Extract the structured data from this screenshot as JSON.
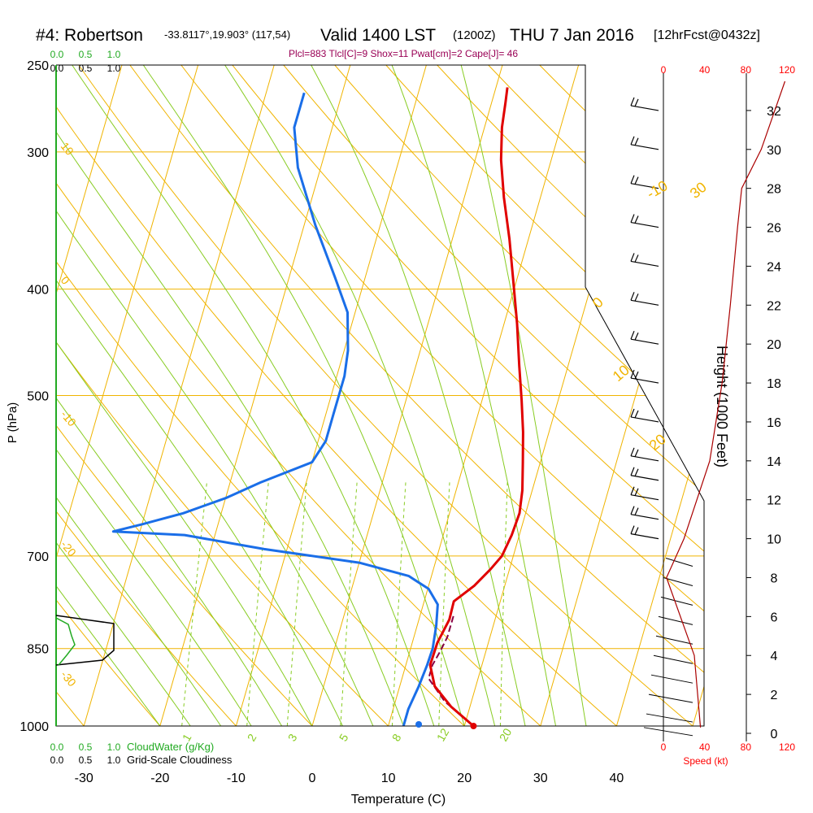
{
  "title": {
    "station": "#4: Robertson",
    "coords": "-33.8117°,19.903° (117,54)",
    "valid": "Valid 1400 LST",
    "zulu": "(1200Z)",
    "date": "THU 7 Jan 2016",
    "forecast": "[12hrFcst@0432z]"
  },
  "indices_text": "Plcl=883 Tlcl[C]=9 Shox=11 Pwat[cm]=2 Cape[J]= 46",
  "colors": {
    "isobar": "#f0b400",
    "mixing_ratio": "#88cc22",
    "temperature": "#e00000",
    "dewpoint": "#1a6ee8",
    "parcel": "#880044",
    "cloud_water": "#22aa22",
    "speed": "#ff0000",
    "indices": "#990055"
  },
  "chart_data": [
    {
      "type": "line",
      "name": "skew-t",
      "xlabel": "Temperature (C)",
      "ylabel": "P (hPa)",
      "x_ticks": [
        "-30",
        "-20",
        "-10",
        "0",
        "10",
        "20",
        "30",
        "40"
      ],
      "y_ticks": [
        "250",
        "300",
        "400",
        "500",
        "700",
        "850",
        "1000"
      ],
      "xlim": [
        -33.5,
        51.5
      ],
      "ylim": [
        1000,
        250
      ],
      "grid": true,
      "isotherm_labels": [
        {
          "t": -10,
          "text": "-10"
        },
        {
          "t": 0,
          "text": "0"
        },
        {
          "t": 10,
          "text": "10"
        },
        {
          "t": 20,
          "text": "20"
        },
        {
          "t": 30,
          "text": "30"
        }
      ],
      "dry_adiabat_labels": [
        "10",
        "0",
        "-10",
        "-20",
        "-30"
      ],
      "mixing_ratio_labels": [
        "1",
        "2",
        "3",
        "5",
        "8",
        "12",
        "20"
      ],
      "series": [
        {
          "key": "temperature",
          "points": [
            [
              21.2,
              1000
            ],
            [
              17.5,
              960
            ],
            [
              14.6,
              920
            ],
            [
              13.2,
              880
            ],
            [
              13.3,
              840
            ],
            [
              14.0,
              800
            ],
            [
              13.9,
              770
            ],
            [
              16.0,
              745
            ],
            [
              17.5,
              720
            ],
            [
              18.5,
              700
            ],
            [
              19.0,
              670
            ],
            [
              19.2,
              640
            ],
            [
              18.7,
              610
            ],
            [
              17.7,
              575
            ],
            [
              16.6,
              540
            ],
            [
              15.2,
              505
            ],
            [
              13.6,
              470
            ],
            [
              11.7,
              430
            ],
            [
              9.7,
              395
            ],
            [
              7.5,
              360
            ],
            [
              5.2,
              330
            ],
            [
              3.4,
              305
            ],
            [
              2.3,
              285
            ],
            [
              1.8,
              270
            ],
            [
              1.5,
              262
            ]
          ]
        },
        {
          "key": "dewpoint",
          "points": [
            [
              12.0,
              1000
            ],
            [
              12.0,
              965
            ],
            [
              12.5,
              920
            ],
            [
              12.8,
              880
            ],
            [
              12.9,
              850
            ],
            [
              12.5,
              810
            ],
            [
              11.9,
              775
            ],
            [
              10.1,
              750
            ],
            [
              7.0,
              730
            ],
            [
              0,
              710
            ],
            [
              -13,
              690
            ],
            [
              -24,
              670
            ],
            [
              -33.5,
              665
            ],
            [
              -30,
              655
            ],
            [
              -25,
              640
            ],
            [
              -20,
              620
            ],
            [
              -16,
              600
            ],
            [
              -10,
              575
            ],
            [
              -9,
              550
            ],
            [
              -9,
              520
            ],
            [
              -9,
              500
            ],
            [
              -9,
              480
            ],
            [
              -9.5,
              455
            ],
            [
              -11,
              420
            ],
            [
              -14,
              390
            ],
            [
              -18.5,
              350
            ],
            [
              -23,
              310
            ],
            [
              -25,
              285
            ],
            [
              -25,
              265
            ]
          ]
        },
        {
          "key": "parcel",
          "points": [
            [
              21.2,
              1000
            ],
            [
              16.5,
              950
            ],
            [
              13.5,
              905
            ],
            [
              13.5,
              880
            ],
            [
              14.0,
              855
            ],
            [
              14.4,
              830
            ],
            [
              14.4,
              790
            ]
          ]
        }
      ],
      "surface": {
        "t": 21.2,
        "td": 12.0
      }
    },
    {
      "type": "line",
      "name": "height-profile",
      "ylabel": "Height (1000 Feet)",
      "xlabel": "Speed (kt)",
      "x_ticks": [
        "0",
        "40",
        "80",
        "120"
      ],
      "y_ticks": [
        "0",
        "2",
        "4",
        "6",
        "8",
        "10",
        "12",
        "14",
        "16",
        "18",
        "20",
        "22",
        "24",
        "26",
        "28",
        "30",
        "32"
      ],
      "xlim": [
        0,
        120
      ],
      "ylim": [
        0,
        33.5
      ],
      "series": [
        {
          "name": "wind speed",
          "points": [
            [
              36,
              0.3
            ],
            [
              30,
              4
            ],
            [
              3,
              8
            ],
            [
              20,
              10
            ],
            [
              45,
              14
            ],
            [
              57,
              18
            ],
            [
              65,
              22
            ],
            [
              72,
              26
            ],
            [
              76,
              28
            ],
            [
              95,
              30
            ],
            [
              118,
              33.5
            ]
          ]
        }
      ],
      "barb_heights": [
        0.3,
        1,
        2,
        3,
        4,
        5,
        6,
        7,
        8,
        9,
        10,
        11,
        12,
        13,
        14,
        16,
        18,
        20,
        22,
        24,
        26,
        28,
        30,
        32
      ]
    },
    {
      "type": "area",
      "name": "cloudiness",
      "scales": [
        {
          "ticks": [
            "0.0",
            "0.5",
            "1.0"
          ],
          "label": "CloudWater (g/Kg)"
        },
        {
          "ticks": [
            "0.0",
            "0.5",
            "1.0"
          ],
          "label": "Grid-Scale Cloudiness"
        }
      ]
    }
  ]
}
